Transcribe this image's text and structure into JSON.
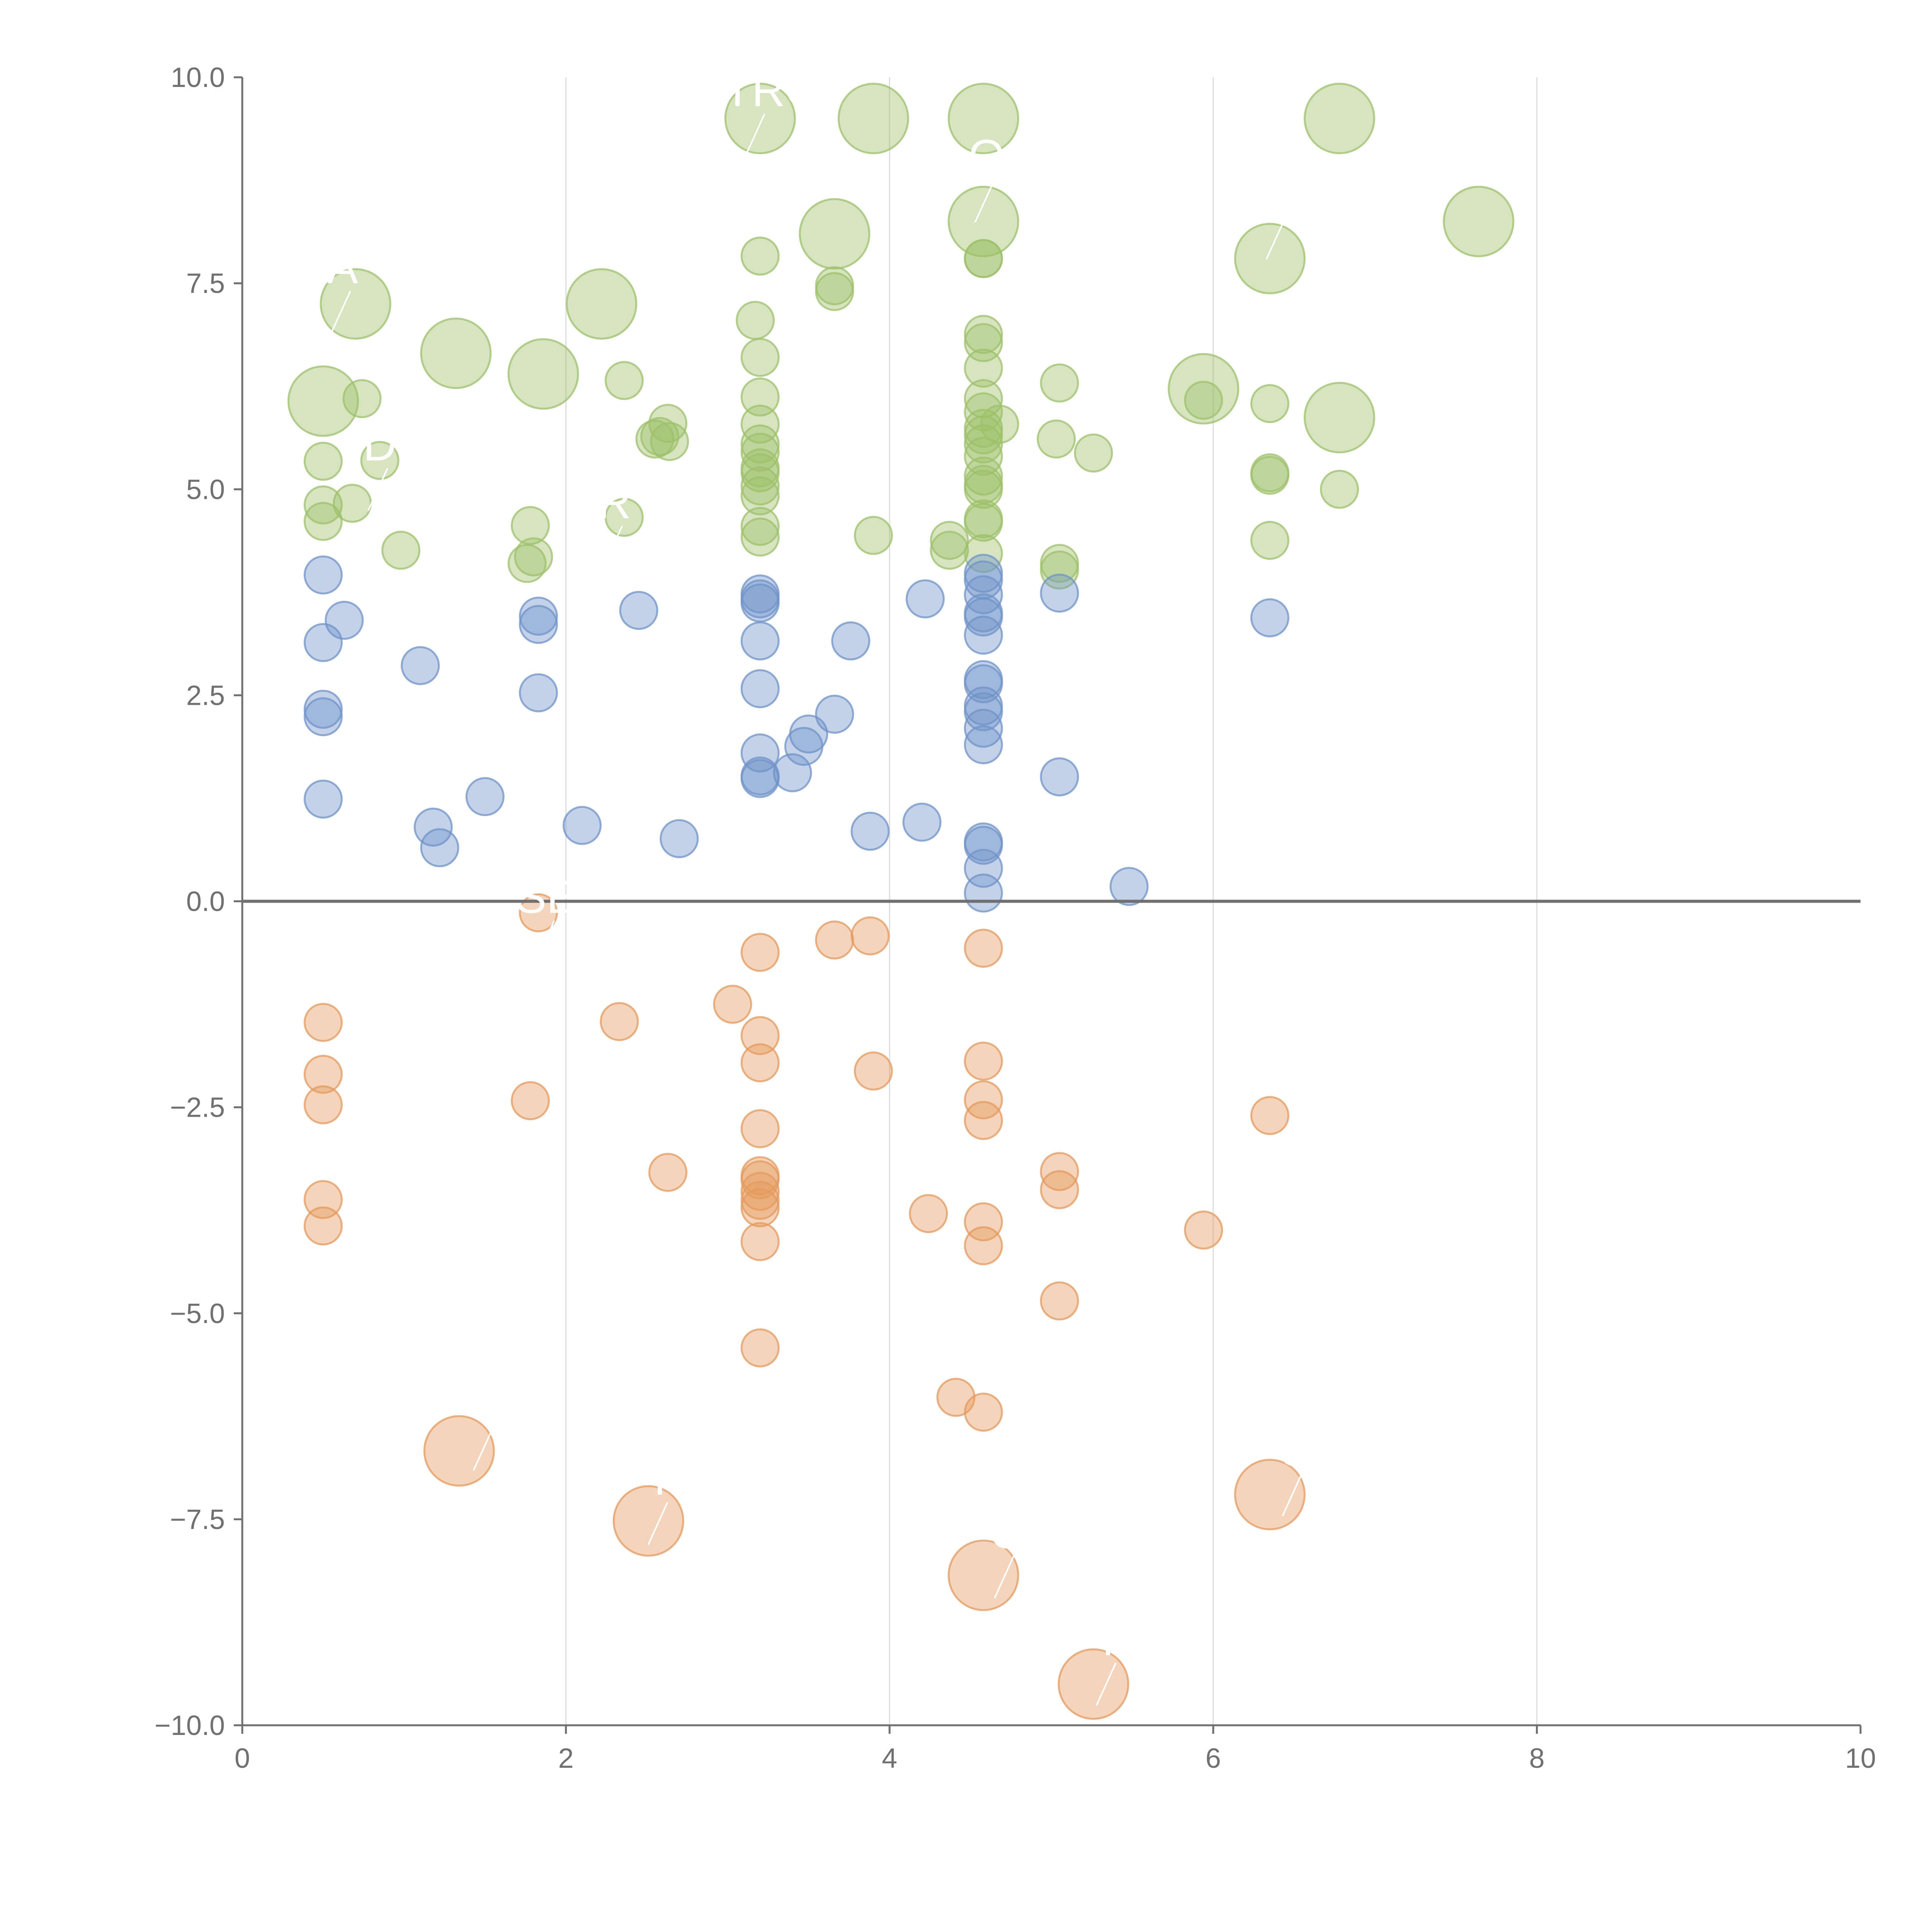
{
  "chart_data": {
    "type": "scatter",
    "title": "",
    "xlabel": "",
    "ylabel": "",
    "xlim": [
      0,
      10
    ],
    "ylim": [
      -10,
      10
    ],
    "grid": "vertical",
    "x_ticks": [
      "0",
      "2",
      "4",
      "6",
      "8",
      "10"
    ],
    "y_ticks": [
      "−10.0",
      "−7.5",
      "−5.0",
      "−2.5",
      "0.0",
      "2.5",
      "5.0",
      "7.5",
      "10.0"
    ],
    "x_tick_values": [
      0,
      2,
      4,
      6,
      8,
      10
    ],
    "y_tick_values": [
      -10,
      -7.5,
      -5,
      -2.5,
      0,
      2.5,
      5,
      7.5,
      10
    ],
    "series": [
      {
        "name": "green",
        "color": "#9dc06a",
        "points": [
          [
            3.2,
            9.5,
            "large"
          ],
          [
            3.9,
            9.5,
            "large"
          ],
          [
            4.58,
            9.5,
            "large"
          ],
          [
            6.78,
            9.5,
            "large"
          ],
          [
            4.58,
            8.25,
            "large"
          ],
          [
            7.64,
            8.25,
            "large"
          ],
          [
            3.66,
            8.1,
            "large"
          ],
          [
            6.35,
            7.8,
            "large"
          ],
          [
            0.7,
            7.25,
            "large"
          ],
          [
            2.22,
            7.25,
            "large"
          ],
          [
            1.32,
            6.65,
            "large"
          ],
          [
            1.86,
            6.4,
            "large"
          ],
          [
            0.5,
            6.07,
            "large"
          ],
          [
            5.94,
            6.22,
            "large"
          ],
          [
            6.78,
            5.87,
            "large"
          ],
          [
            3.2,
            7.83,
            "small"
          ],
          [
            4.58,
            7.8,
            "small"
          ],
          [
            4.58,
            7.8,
            "small"
          ],
          [
            3.66,
            7.47,
            "small"
          ],
          [
            3.66,
            7.4,
            "small"
          ],
          [
            3.17,
            7.05,
            "small"
          ],
          [
            4.58,
            6.88,
            "small"
          ],
          [
            4.58,
            6.78,
            "small"
          ],
          [
            3.2,
            6.6,
            "small"
          ],
          [
            4.58,
            6.47,
            "small"
          ],
          [
            2.36,
            6.32,
            "small"
          ],
          [
            5.05,
            6.29,
            "small"
          ],
          [
            3.2,
            6.12,
            "small"
          ],
          [
            4.58,
            6.1,
            "small"
          ],
          [
            0.74,
            6.1,
            "small"
          ],
          [
            5.94,
            6.08,
            "small"
          ],
          [
            6.35,
            6.04,
            "small"
          ],
          [
            4.58,
            5.94,
            "small"
          ],
          [
            2.63,
            5.8,
            "small"
          ],
          [
            3.2,
            5.79,
            "small"
          ],
          [
            4.68,
            5.79,
            "small"
          ],
          [
            4.58,
            5.74,
            "small"
          ],
          [
            4.58,
            5.66,
            "small"
          ],
          [
            2.58,
            5.64,
            "small"
          ],
          [
            2.64,
            5.58,
            "small"
          ],
          [
            2.55,
            5.61,
            "small"
          ],
          [
            5.03,
            5.61,
            "small"
          ],
          [
            4.58,
            5.55,
            "small"
          ],
          [
            3.2,
            5.55,
            "small"
          ],
          [
            3.2,
            5.45,
            "small"
          ],
          [
            5.26,
            5.44,
            "small"
          ],
          [
            4.58,
            5.4,
            "small"
          ],
          [
            0.85,
            5.35,
            "small"
          ],
          [
            0.5,
            5.34,
            "small"
          ],
          [
            3.2,
            5.26,
            "small"
          ],
          [
            3.2,
            5.2,
            "small"
          ],
          [
            6.35,
            5.2,
            "small"
          ],
          [
            6.35,
            5.17,
            "small"
          ],
          [
            4.58,
            5.16,
            "small"
          ],
          [
            4.58,
            5.06,
            "small"
          ],
          [
            3.2,
            5.04,
            "small"
          ],
          [
            6.78,
            5.0,
            "small"
          ],
          [
            4.58,
            5.0,
            "small"
          ],
          [
            3.2,
            4.92,
            "small"
          ],
          [
            0.5,
            4.81,
            "small"
          ],
          [
            0.68,
            4.83,
            "small"
          ],
          [
            2.36,
            4.66,
            "small"
          ],
          [
            4.58,
            4.64,
            "small"
          ],
          [
            4.58,
            4.6,
            "small"
          ],
          [
            0.5,
            4.61,
            "small"
          ],
          [
            1.78,
            4.56,
            "small"
          ],
          [
            3.2,
            4.55,
            "small"
          ],
          [
            3.9,
            4.44,
            "small"
          ],
          [
            3.2,
            4.42,
            "small"
          ],
          [
            4.37,
            4.38,
            "small"
          ],
          [
            6.35,
            4.38,
            "small"
          ],
          [
            0.98,
            4.26,
            "small"
          ],
          [
            4.37,
            4.26,
            "small"
          ],
          [
            4.58,
            4.22,
            "small"
          ],
          [
            1.8,
            4.18,
            "small"
          ],
          [
            5.05,
            4.1,
            "small"
          ],
          [
            1.76,
            4.1,
            "small"
          ],
          [
            5.05,
            4.02,
            "small"
          ]
        ]
      },
      {
        "name": "blue",
        "color": "#6f93c8",
        "points": [
          [
            4.58,
            3.98,
            "small"
          ],
          [
            0.5,
            3.96,
            "small"
          ],
          [
            4.58,
            3.9,
            "small"
          ],
          [
            3.2,
            3.73,
            "small"
          ],
          [
            5.05,
            3.74,
            "small"
          ],
          [
            4.58,
            3.72,
            "small"
          ],
          [
            3.2,
            3.67,
            "small"
          ],
          [
            4.22,
            3.67,
            "small"
          ],
          [
            3.2,
            3.62,
            "small"
          ],
          [
            2.45,
            3.53,
            "small"
          ],
          [
            4.58,
            3.5,
            "small"
          ],
          [
            1.83,
            3.46,
            "small"
          ],
          [
            4.58,
            3.45,
            "small"
          ],
          [
            6.35,
            3.44,
            "small"
          ],
          [
            0.63,
            3.41,
            "small"
          ],
          [
            1.83,
            3.36,
            "small"
          ],
          [
            4.58,
            3.23,
            "small"
          ],
          [
            3.2,
            3.16,
            "small"
          ],
          [
            3.76,
            3.16,
            "small"
          ],
          [
            0.5,
            3.14,
            "small"
          ],
          [
            1.1,
            2.86,
            "small"
          ],
          [
            4.58,
            2.69,
            "small"
          ],
          [
            4.58,
            2.64,
            "small"
          ],
          [
            3.2,
            2.58,
            "small"
          ],
          [
            1.83,
            2.53,
            "small"
          ],
          [
            4.58,
            2.37,
            "small"
          ],
          [
            0.5,
            2.33,
            "small"
          ],
          [
            4.58,
            2.3,
            "small"
          ],
          [
            3.66,
            2.27,
            "small"
          ],
          [
            0.5,
            2.24,
            "small"
          ],
          [
            4.58,
            2.1,
            "small"
          ],
          [
            3.5,
            2.03,
            "small"
          ],
          [
            4.58,
            1.9,
            "small"
          ],
          [
            3.47,
            1.88,
            "small"
          ],
          [
            3.2,
            1.8,
            "small"
          ],
          [
            3.4,
            1.56,
            "small"
          ],
          [
            3.2,
            1.52,
            "small"
          ],
          [
            5.05,
            1.51,
            "small"
          ],
          [
            3.2,
            1.49,
            "small"
          ],
          [
            1.5,
            1.27,
            "small"
          ],
          [
            0.5,
            1.24,
            "small"
          ],
          [
            4.2,
            0.96,
            "small"
          ],
          [
            2.1,
            0.92,
            "small"
          ],
          [
            1.18,
            0.9,
            "small"
          ],
          [
            3.88,
            0.85,
            "small"
          ],
          [
            2.7,
            0.76,
            "small"
          ],
          [
            4.58,
            0.72,
            "small"
          ],
          [
            4.58,
            0.68,
            "small"
          ],
          [
            1.22,
            0.65,
            "small"
          ],
          [
            4.58,
            0.4,
            "small"
          ],
          [
            5.48,
            0.18,
            "small"
          ],
          [
            4.58,
            0.1,
            "small"
          ]
        ]
      },
      {
        "name": "orange",
        "color": "#e49a5c",
        "points": [
          [
            1.83,
            -0.14,
            "small"
          ],
          [
            3.66,
            -0.47,
            "small"
          ],
          [
            3.88,
            -0.42,
            "small"
          ],
          [
            4.58,
            -0.57,
            "small"
          ],
          [
            3.2,
            -0.62,
            "small"
          ],
          [
            3.03,
            -1.25,
            "small"
          ],
          [
            0.5,
            -1.47,
            "small"
          ],
          [
            2.33,
            -1.46,
            "small"
          ],
          [
            3.2,
            -1.63,
            "small"
          ],
          [
            4.58,
            -1.94,
            "small"
          ],
          [
            3.2,
            -1.96,
            "small"
          ],
          [
            3.9,
            -2.06,
            "small"
          ],
          [
            0.5,
            -2.1,
            "small"
          ],
          [
            4.58,
            -2.41,
            "small"
          ],
          [
            1.78,
            -2.42,
            "small"
          ],
          [
            0.5,
            -2.47,
            "small"
          ],
          [
            6.35,
            -2.6,
            "small"
          ],
          [
            4.58,
            -2.66,
            "small"
          ],
          [
            3.2,
            -2.76,
            "small"
          ],
          [
            2.63,
            -3.29,
            "small"
          ],
          [
            5.05,
            -3.28,
            "small"
          ],
          [
            3.2,
            -3.33,
            "small"
          ],
          [
            3.2,
            -3.38,
            "small"
          ],
          [
            3.2,
            -3.52,
            "small"
          ],
          [
            5.05,
            -3.5,
            "small"
          ],
          [
            3.2,
            -3.63,
            "small"
          ],
          [
            0.5,
            -3.62,
            "small"
          ],
          [
            3.2,
            -3.72,
            "small"
          ],
          [
            4.24,
            -3.79,
            "small"
          ],
          [
            4.58,
            -3.89,
            "small"
          ],
          [
            0.5,
            -3.94,
            "small"
          ],
          [
            5.94,
            -3.99,
            "small"
          ],
          [
            3.2,
            -4.13,
            "small"
          ],
          [
            4.58,
            -4.18,
            "small"
          ],
          [
            5.05,
            -4.85,
            "small"
          ],
          [
            3.2,
            -5.42,
            "small"
          ],
          [
            4.41,
            -6.02,
            "small"
          ],
          [
            4.58,
            -6.2,
            "small"
          ],
          [
            1.34,
            -6.67,
            "large"
          ],
          [
            6.35,
            -7.2,
            "large"
          ],
          [
            2.51,
            -7.52,
            "large"
          ],
          [
            4.58,
            -8.18,
            "large"
          ],
          [
            5.26,
            -9.5,
            "large"
          ]
        ]
      }
    ],
    "annotations": [
      {
        "text": "VTRO",
        "x": 3.18,
        "y": 9.65,
        "color": "#ffffff"
      },
      {
        "text": "A",
        "x": 0.62,
        "y": 7.5,
        "color": "#ffffff"
      },
      {
        "text": "D",
        "x": 0.85,
        "y": 5.35,
        "color": "#ffffff"
      },
      {
        "text": "R",
        "x": 2.3,
        "y": 4.65,
        "color": "#ffffff"
      },
      {
        "text": "O",
        "x": 4.6,
        "y": 8.85,
        "color": "#ffffff"
      },
      {
        "text": "C",
        "x": 6.4,
        "y": 8.4,
        "color": "#ffffff"
      },
      {
        "text": "SE",
        "x": 1.88,
        "y": -0.14,
        "color": "#ffffff"
      },
      {
        "text": "C",
        "x": 1.5,
        "y": -6.3,
        "color": "#ffffff"
      },
      {
        "text": "I",
        "x": 2.58,
        "y": -7.2,
        "color": "#ffffff"
      },
      {
        "text": "C",
        "x": 4.72,
        "y": -7.85,
        "color": "#ffffff"
      },
      {
        "text": "C",
        "x": 6.5,
        "y": -6.85,
        "color": "#ffffff"
      },
      {
        "text": "I",
        "x": 5.35,
        "y": -9.15,
        "color": "#ffffff"
      }
    ]
  }
}
